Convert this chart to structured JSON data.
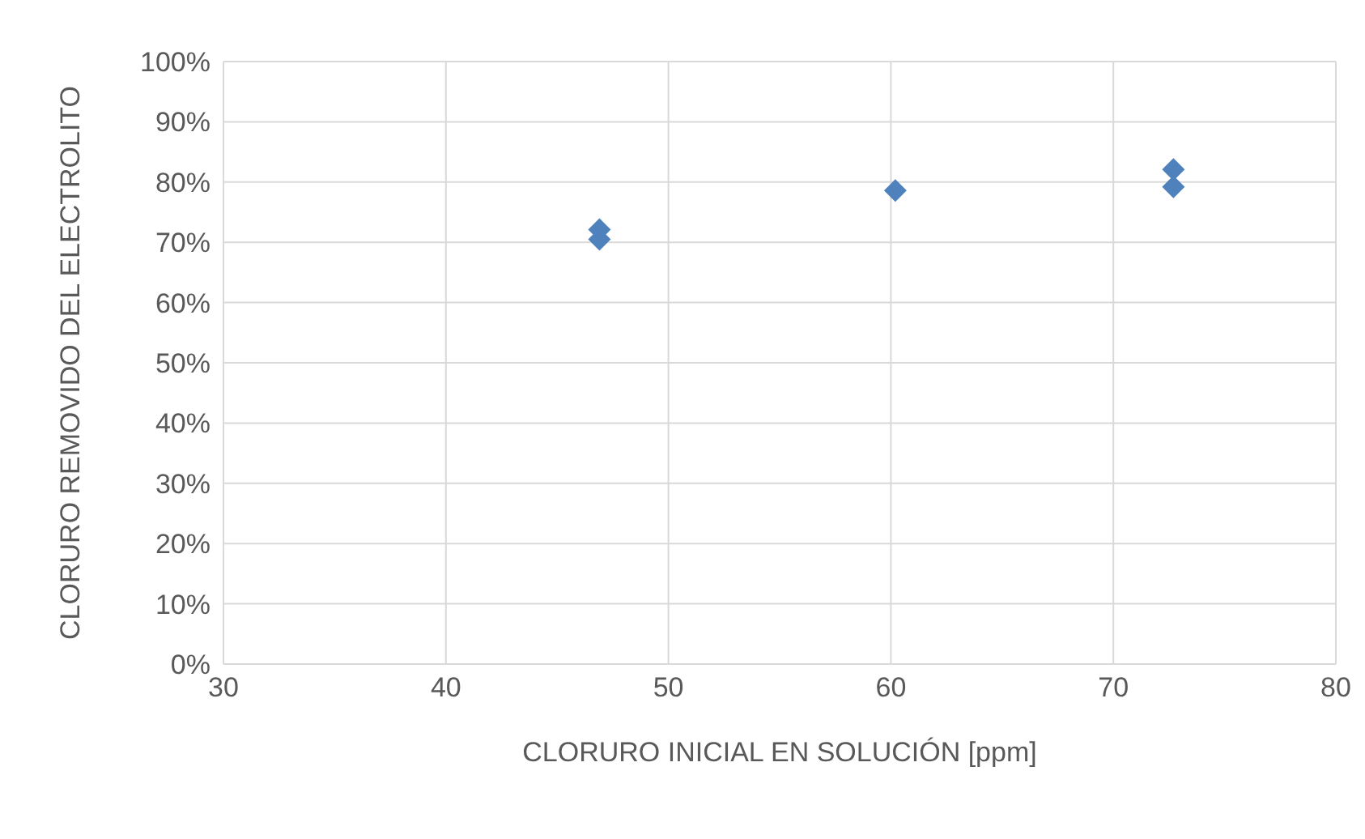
{
  "chart_data": {
    "type": "scatter",
    "xlabel": "CLORURO INICIAL EN SOLUCIÓN [ppm]",
    "ylabel": "CLORURO REMOVIDO DEL ELECTROLITO",
    "x": [
      46.9,
      46.9,
      60.2,
      72.7,
      72.7
    ],
    "series": [
      {
        "color": "#4f81bd",
        "values": [
          72.1,
          70.5,
          78.6,
          82.1,
          79.2
        ]
      }
    ],
    "xlim": [
      30,
      80
    ],
    "xticks": [
      30,
      40,
      50,
      60,
      70,
      80
    ],
    "ylim": [
      0,
      100
    ],
    "yticks": [
      {
        "value": 0,
        "label": "0%"
      },
      {
        "value": 10,
        "label": "10%"
      },
      {
        "value": 20,
        "label": "20%"
      },
      {
        "value": 30,
        "label": "30%"
      },
      {
        "value": 40,
        "label": "40%"
      },
      {
        "value": 50,
        "label": "50%"
      },
      {
        "value": 60,
        "label": "60%"
      },
      {
        "value": 70,
        "label": "70%"
      },
      {
        "value": 80,
        "label": "80%"
      },
      {
        "value": 90,
        "label": "90%"
      },
      {
        "value": 100,
        "label": "100%"
      }
    ],
    "grid": true,
    "marker": "diamond",
    "legend": false
  }
}
